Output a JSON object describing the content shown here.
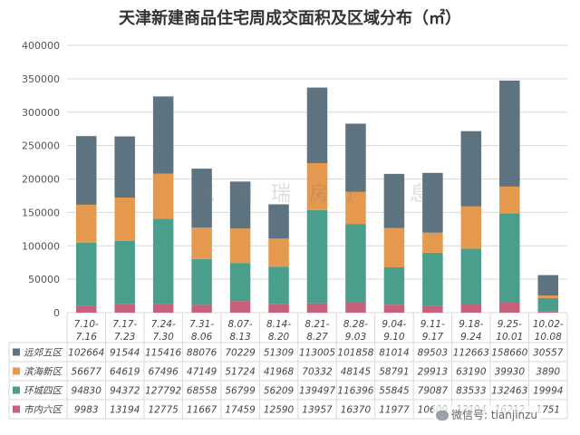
{
  "colors": {
    "远郊五区": "#5e7380",
    "滨海新区": "#e5994f",
    "环城四区": "#4a9e8c",
    "市内六区": "#c7607a"
  },
  "watermark": "克而瑞房产 息",
  "wechat_text": "微信号: tianjinzu",
  "chart_data": {
    "type": "bar",
    "stacked": true,
    "title": "天津新建商品住宅周成交面积及区域分布（㎡）",
    "xlabel": "",
    "ylabel": "",
    "ylim": [
      0,
      400000
    ],
    "yticks": [
      0,
      50000,
      100000,
      150000,
      200000,
      250000,
      300000,
      350000,
      400000
    ],
    "grid": true,
    "legend": "data-table-left",
    "categories": [
      [
        "7.10-",
        "7.16"
      ],
      [
        "7.17-",
        "7.23"
      ],
      [
        "7.24-",
        "7.30"
      ],
      [
        "7.31-",
        "8.06"
      ],
      [
        "8.07-",
        "8.13"
      ],
      [
        "8.14-",
        "8.20"
      ],
      [
        "8.21-",
        "8.27"
      ],
      [
        "8.28-",
        "9.03"
      ],
      [
        "9.04-",
        "9.10"
      ],
      [
        "9.11-",
        "9.17"
      ],
      [
        "9.18-",
        "9.24"
      ],
      [
        "9.25-",
        "10.01"
      ],
      [
        "10.02-",
        "10.08"
      ]
    ],
    "series": [
      {
        "name": "市内六区",
        "values": [
          9983,
          13194,
          12775,
          11667,
          17459,
          12590,
          13957,
          16370,
          11977,
          10609,
          12194,
          16212,
          1751
        ]
      },
      {
        "name": "环城四区",
        "values": [
          94830,
          94372,
          127792,
          68558,
          56799,
          56209,
          139497,
          116396,
          55845,
          79087,
          83533,
          132463,
          19994
        ]
      },
      {
        "name": "滨海新区",
        "values": [
          56677,
          64619,
          67496,
          47149,
          51724,
          41968,
          70332,
          48145,
          58791,
          29913,
          63190,
          39930,
          3890
        ]
      },
      {
        "name": "远郊五区",
        "values": [
          102664,
          91544,
          115416,
          88076,
          70229,
          51309,
          113005,
          101858,
          81014,
          89503,
          112663,
          158660,
          30557
        ]
      }
    ],
    "table_series_order": [
      "远郊五区",
      "滨海新区",
      "环城四区",
      "市内六区"
    ]
  }
}
